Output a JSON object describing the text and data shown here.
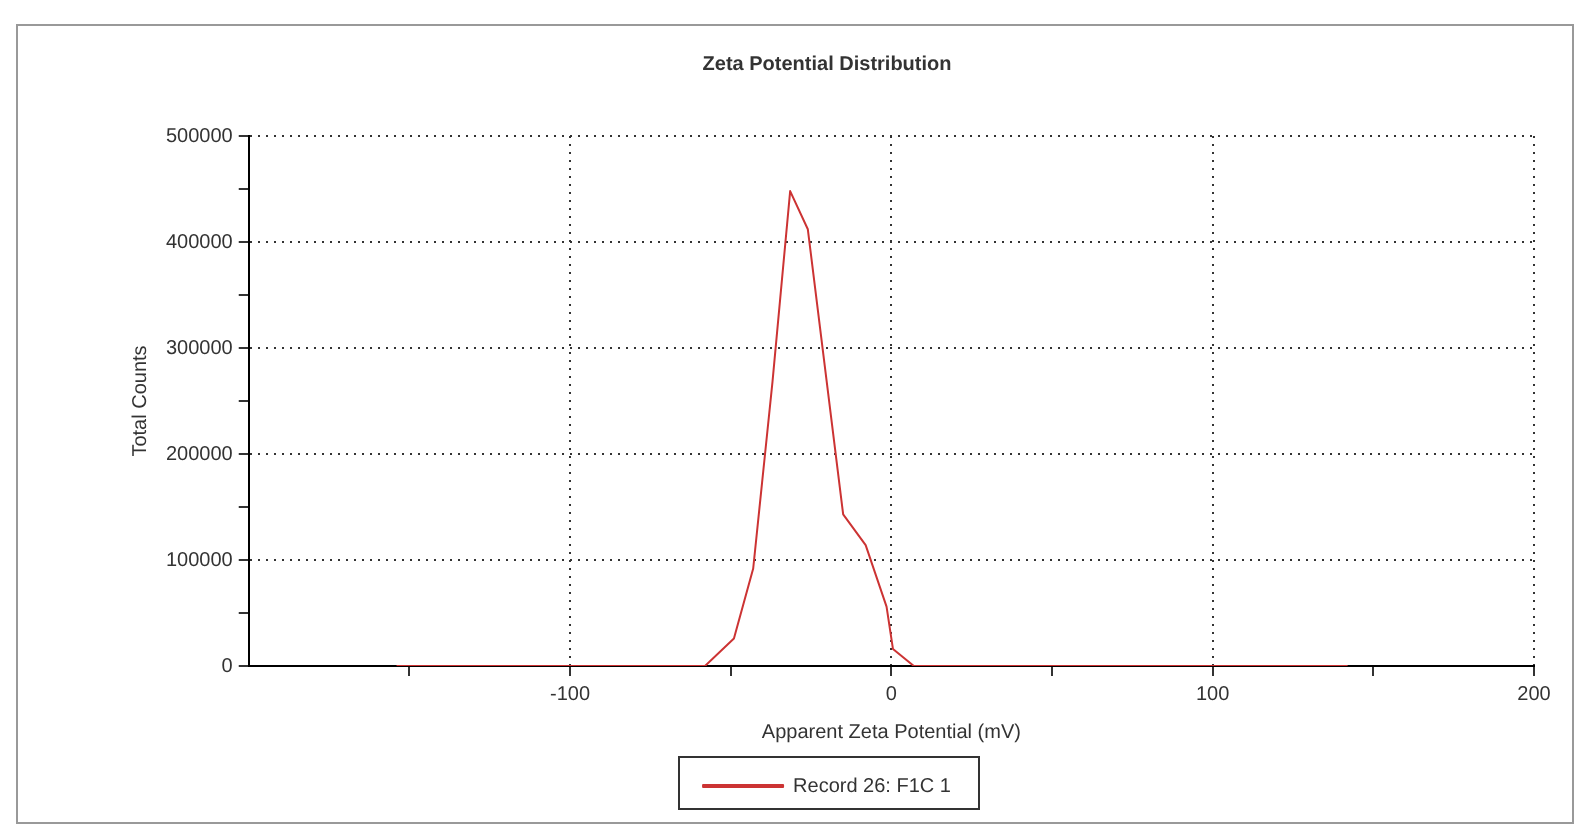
{
  "chart_data": {
    "type": "line",
    "title": "Zeta Potential Distribution",
    "xlabel": "Apparent Zeta Potential (mV)",
    "ylabel": "Total Counts",
    "series": [
      {
        "name": "Record 26: F1C 1",
        "color": "#cc3333",
        "x": [
          -154,
          -58,
          -49,
          -43,
          -37,
          -31.5,
          -26,
          -15,
          -8,
          -1.5,
          0.5,
          7,
          142
        ],
        "values": [
          0,
          0,
          26000,
          92000,
          268000,
          448000,
          412000,
          143000,
          114000,
          56000,
          16000,
          0,
          0
        ]
      }
    ],
    "xlim": [
      -200,
      200
    ],
    "xticks": [
      {
        "value": -150,
        "label": null
      },
      -100,
      {
        "value": -50,
        "label": null
      },
      0,
      {
        "value": 50,
        "label": null
      },
      100,
      {
        "value": 150,
        "label": null
      },
      200
    ],
    "ylim": [
      0,
      500000
    ],
    "yticks": [
      0,
      {
        "value": 50000,
        "label": null
      },
      100000,
      {
        "value": 150000,
        "label": null
      },
      200000,
      {
        "value": 250000,
        "label": null
      },
      300000,
      {
        "value": 350000,
        "label": null
      },
      400000,
      {
        "value": 450000,
        "label": null
      },
      500000
    ],
    "grid": true,
    "legend": "bottom",
    "marker": "none",
    "line_style": "solid"
  }
}
